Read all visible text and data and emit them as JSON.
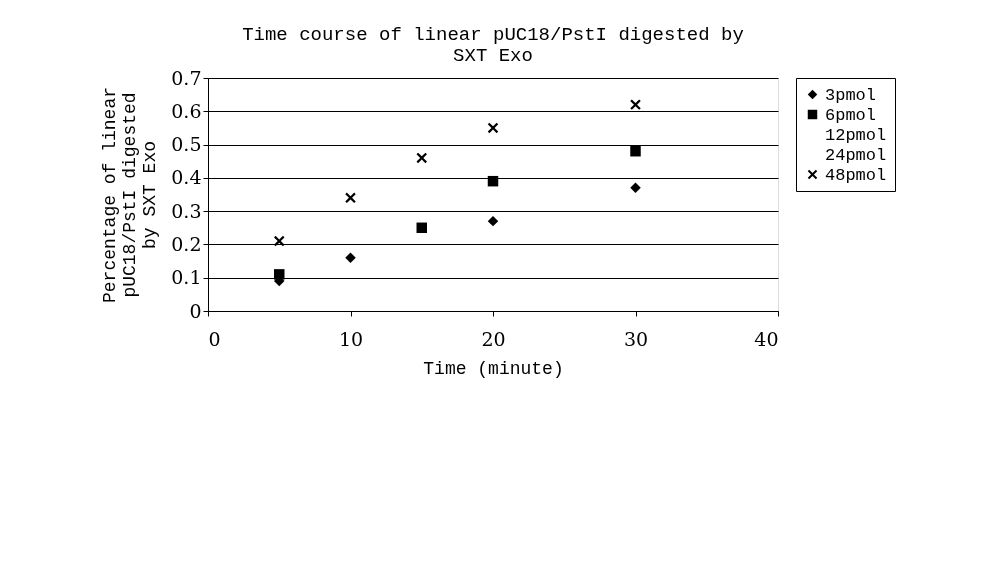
{
  "chart_data": {
    "type": "scatter",
    "title": "Time course of linear pUC18/PstI digested by SXT Exo",
    "xlabel": "Time (minute)",
    "ylabel": "Percentage of linear pUC18/PstI digested by SXT Exo",
    "xlim": [
      0,
      40
    ],
    "xticks": [
      0,
      10,
      20,
      30,
      40
    ],
    "ylim": [
      0,
      0.7
    ],
    "yticks": [
      0,
      0.1,
      0.2,
      0.3,
      0.4,
      0.5,
      0.6,
      0.7
    ],
    "grid": "y",
    "legend": "right",
    "series": [
      {
        "name": "3pmol",
        "color": "#000000",
        "marker": "diamond",
        "x": [
          5,
          10,
          20,
          30
        ],
        "values": [
          0.09,
          0.16,
          0.27,
          0.37
        ]
      },
      {
        "name": "6pmol",
        "color": "#000000",
        "marker": "square",
        "x": [
          5,
          15,
          20,
          30
        ],
        "values": [
          0.11,
          0.25,
          0.39,
          0.48
        ]
      },
      {
        "name": "12pmol",
        "color": "#000000",
        "marker": "none"
      },
      {
        "name": "24pmol",
        "color": "#000000",
        "marker": "none"
      },
      {
        "name": "48pmol",
        "color": "#000000",
        "marker": "cross",
        "x": [
          5,
          10,
          15,
          20,
          30
        ],
        "values": [
          0.21,
          0.34,
          0.46,
          0.55,
          0.62
        ]
      }
    ]
  }
}
